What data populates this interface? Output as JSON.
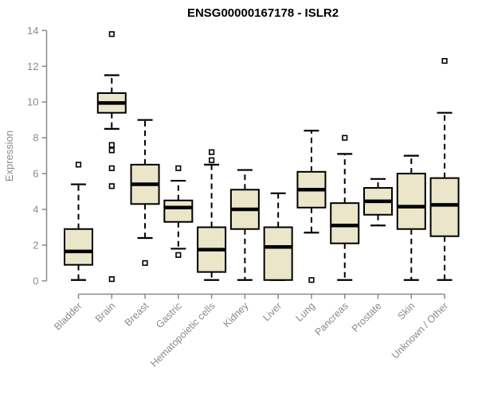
{
  "chart_data": {
    "type": "box",
    "title": "ENSG00000167178 - ISLR2",
    "ylabel": "Expression",
    "xlabel": "",
    "yticks": [
      0,
      2,
      4,
      6,
      8,
      10,
      12,
      14
    ],
    "ylim": [
      0,
      14
    ],
    "grid": false,
    "legend": false,
    "categories": [
      "Bladder",
      "Brain",
      "Breast",
      "Gastric",
      "Hematopoietic cells",
      "Kidney",
      "Liver",
      "Lung",
      "Pancreas",
      "Prostate",
      "Skin",
      "Unknown / Other"
    ],
    "series": [
      {
        "name": "Bladder",
        "whisker_low": 0.05,
        "q1": 0.9,
        "median": 1.65,
        "q3": 2.9,
        "whisker_high": 5.4,
        "outliers": [
          6.5
        ]
      },
      {
        "name": "Brain",
        "whisker_low": 8.5,
        "q1": 9.4,
        "median": 9.95,
        "q3": 10.5,
        "whisker_high": 11.5,
        "outliers": [
          13.8,
          7.6,
          7.3,
          6.3,
          5.3,
          0.1
        ]
      },
      {
        "name": "Breast",
        "whisker_low": 2.4,
        "q1": 4.3,
        "median": 5.4,
        "q3": 6.5,
        "whisker_high": 9.0,
        "outliers": [
          1.0
        ]
      },
      {
        "name": "Gastric",
        "whisker_low": 1.8,
        "q1": 3.3,
        "median": 4.1,
        "q3": 4.5,
        "whisker_high": 5.6,
        "outliers": [
          6.3,
          1.45
        ]
      },
      {
        "name": "Hematopoietic cells",
        "whisker_low": 0.05,
        "q1": 0.5,
        "median": 1.75,
        "q3": 3.0,
        "whisker_high": 6.5,
        "outliers": [
          7.2,
          6.75
        ]
      },
      {
        "name": "Kidney",
        "whisker_low": 0.05,
        "q1": 2.9,
        "median": 4.0,
        "q3": 5.1,
        "whisker_high": 6.2,
        "outliers": []
      },
      {
        "name": "Liver",
        "whisker_low": 0.05,
        "q1": 0.05,
        "median": 1.9,
        "q3": 3.0,
        "whisker_high": 4.9,
        "outliers": []
      },
      {
        "name": "Lung",
        "whisker_low": 2.7,
        "q1": 4.1,
        "median": 5.1,
        "q3": 6.1,
        "whisker_high": 8.4,
        "outliers": [
          0.05
        ]
      },
      {
        "name": "Pancreas",
        "whisker_low": 0.05,
        "q1": 2.1,
        "median": 3.1,
        "q3": 4.35,
        "whisker_high": 7.1,
        "outliers": [
          8.0
        ]
      },
      {
        "name": "Prostate",
        "whisker_low": 3.1,
        "q1": 3.7,
        "median": 4.45,
        "q3": 5.2,
        "whisker_high": 5.7,
        "outliers": []
      },
      {
        "name": "Skin",
        "whisker_low": 0.05,
        "q1": 2.9,
        "median": 4.15,
        "q3": 6.0,
        "whisker_high": 7.0,
        "outliers": []
      },
      {
        "name": "Unknown / Other",
        "whisker_low": 0.05,
        "q1": 2.5,
        "median": 4.25,
        "q3": 5.75,
        "whisker_high": 9.4,
        "outliers": [
          12.3
        ]
      }
    ],
    "colors": {
      "box_fill": "#EBE5C9",
      "box_border": "#000000",
      "median": "#000000",
      "whisker": "#000000",
      "outlier_fill": "#ffffff",
      "axis": "#8a8a8a",
      "tick_label": "#8a8a8a",
      "title": "#000000",
      "background": "#ffffff"
    }
  }
}
